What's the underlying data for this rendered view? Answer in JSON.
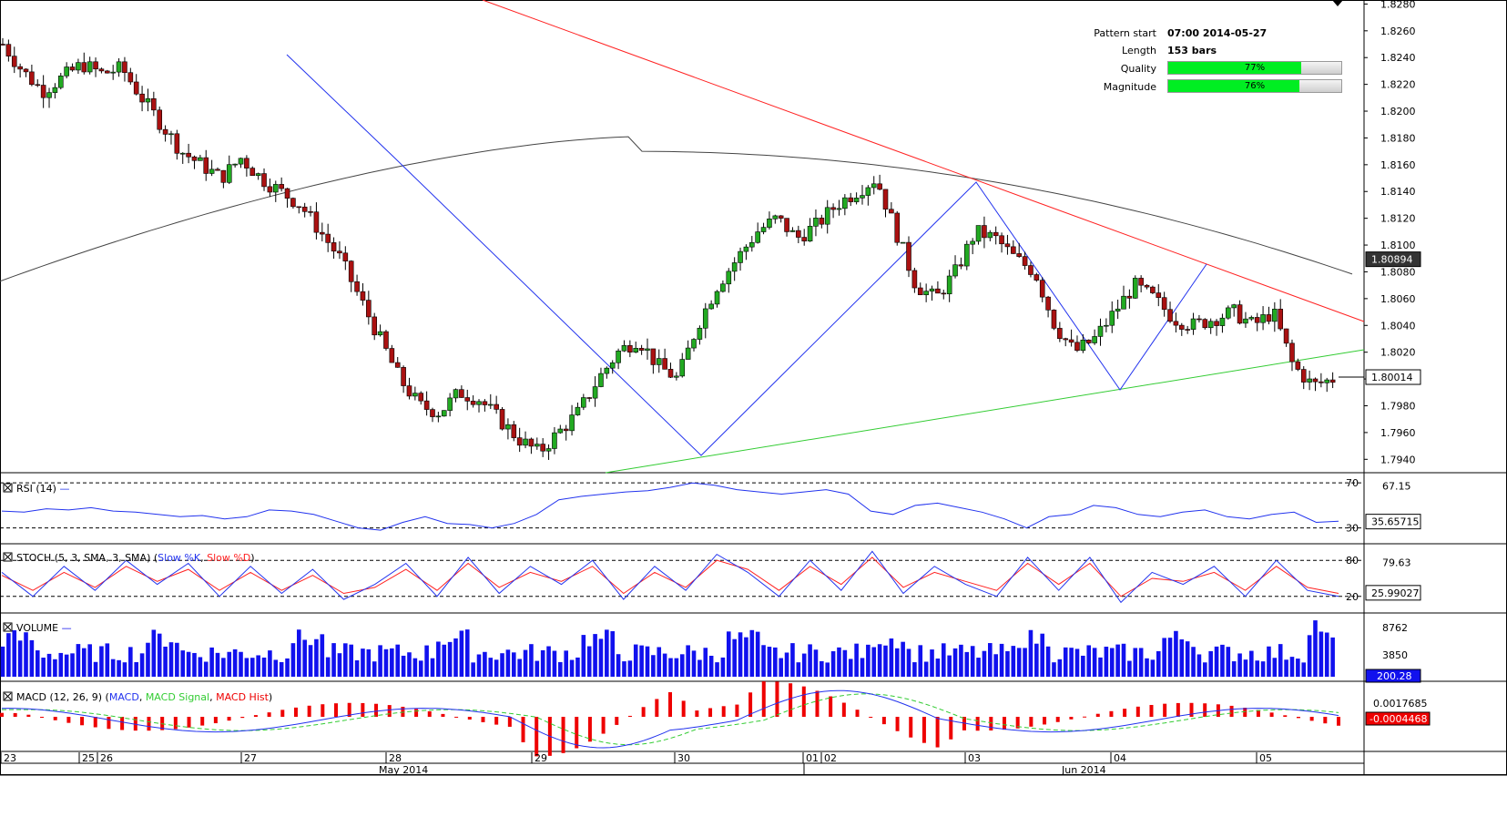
{
  "info": {
    "pattern_start_label": "Pattern start",
    "pattern_start_value": "07:00 2014-05-27",
    "length_label": "Length",
    "length_value": "153 bars",
    "quality_label": "Quality",
    "quality_value": "77%",
    "quality_fraction": 0.77,
    "magnitude_label": "Magnitude",
    "magnitude_value": "76%",
    "magnitude_fraction": 0.76
  },
  "colors": {
    "bull": "#22aa22",
    "bear": "#aa1111",
    "resistance": "#ff2222",
    "support": "#33cc33",
    "zigzag": "#2233ee",
    "ma": "#444444",
    "rsi": "#2233ee",
    "stoch_k": "#2233ee",
    "stoch_d": "#ff2222",
    "volume": "#1111ee",
    "macd": "#2233ee",
    "macd_signal": "#33cc33",
    "macd_hist": "#ee0000"
  },
  "chart_data": {
    "type": "candlestick",
    "price_axis": {
      "ticks": [
        "1.8280",
        "1.8260",
        "1.8240",
        "1.8220",
        "1.8200",
        "1.8180",
        "1.8160",
        "1.8140",
        "1.8120",
        "1.8100",
        "1.8080",
        "1.8060",
        "1.8040",
        "1.8020",
        "1.8000",
        "1.7980",
        "1.7960",
        "1.7940"
      ],
      "ylim": [
        1.793,
        1.8283
      ],
      "current_price_label": "1.80014",
      "current_price": 1.80014,
      "ma_price_label": "1.80894",
      "ma_price": 1.80894
    },
    "date_ticks": [
      "23",
      "25",
      "26",
      "27",
      "28",
      "29",
      "30",
      "01",
      "02",
      "03",
      "04",
      "05"
    ],
    "month_labels": [
      "May 2014",
      "Jun 2014"
    ],
    "candles_close_approx": [
      1.825,
      1.823,
      1.8215,
      1.8225,
      1.8235,
      1.8228,
      1.8232,
      1.821,
      1.819,
      1.817,
      1.816,
      1.815,
      1.8165,
      1.815,
      1.814,
      1.813,
      1.811,
      1.809,
      1.806,
      1.803,
      1.8,
      1.798,
      1.7975,
      1.799,
      1.7985,
      1.797,
      1.7955,
      1.7945,
      1.796,
      1.7975,
      1.8,
      1.802,
      1.803,
      1.801,
      1.8,
      1.804,
      1.807,
      1.809,
      1.811,
      1.812,
      1.8105,
      1.8115,
      1.813,
      1.814,
      1.815,
      1.811,
      1.807,
      1.806,
      1.808,
      1.811,
      1.8105,
      1.809,
      1.808,
      1.804,
      1.802,
      1.803,
      1.805,
      1.807,
      1.806,
      1.8045,
      1.804,
      1.8045,
      1.805,
      1.804,
      1.805,
      1.801,
      1.7995,
      1.8
    ],
    "pattern": {
      "name": "triangle",
      "resistance_line": "falling",
      "support_line": "rising"
    },
    "rsi": {
      "label": "RSI (14)",
      "levels": [
        "70",
        "30"
      ],
      "tick": "67.15",
      "current_label": "35.65715",
      "current": 35.65715,
      "values": [
        45,
        44,
        47,
        46,
        48,
        45,
        44,
        42,
        40,
        41,
        38,
        40,
        46,
        45,
        42,
        36,
        30,
        28,
        35,
        40,
        34,
        33,
        30,
        34,
        42,
        55,
        58,
        60,
        62,
        63,
        66,
        70,
        68,
        64,
        62,
        60,
        62,
        64,
        60,
        45,
        42,
        50,
        52,
        48,
        44,
        38,
        30,
        40,
        42,
        50,
        48,
        42,
        40,
        44,
        46,
        40,
        38,
        42,
        44,
        35,
        36
      ]
    },
    "stoch": {
      "label": "STOCH (5, 3, SMA, 3, SMA)",
      "series_k": "Slow %K",
      "series_d": "Slow %D",
      "levels": [
        "80",
        "20"
      ],
      "tick": "79.63",
      "current_label": "25.99027",
      "current": 25.99027,
      "values_k": [
        60,
        20,
        70,
        30,
        80,
        40,
        75,
        20,
        70,
        25,
        65,
        15,
        40,
        75,
        20,
        85,
        25,
        70,
        40,
        80,
        15,
        70,
        30,
        90,
        60,
        20,
        80,
        30,
        95,
        25,
        70,
        40,
        20,
        85,
        30,
        85,
        10,
        60,
        40,
        70,
        20,
        80,
        30,
        20
      ],
      "values_d": [
        55,
        30,
        60,
        35,
        70,
        45,
        65,
        30,
        60,
        30,
        55,
        25,
        35,
        65,
        30,
        75,
        35,
        60,
        45,
        70,
        25,
        60,
        35,
        80,
        65,
        30,
        70,
        40,
        85,
        35,
        60,
        45,
        30,
        75,
        40,
        75,
        20,
        50,
        45,
        60,
        30,
        70,
        35,
        25
      ]
    },
    "volume": {
      "label": "VOLUME",
      "ticks": [
        "8762",
        "3850"
      ],
      "current_label": "200.28",
      "current": 200.28
    },
    "macd": {
      "label": "MACD (12, 26, 9)",
      "series": [
        "MACD",
        "MACD Signal",
        "MACD Hist"
      ],
      "tick": "0.0017685",
      "current_label": "-0.0004468",
      "current": -0.0004468
    }
  }
}
